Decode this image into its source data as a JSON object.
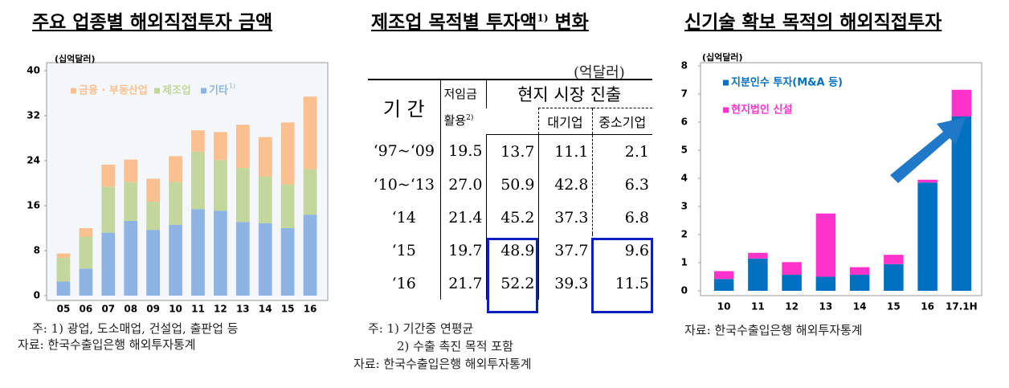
{
  "chart_data": [
    {
      "type": "stacked_bar",
      "title": "주요 업종별 해외직접투자 금액",
      "unit": "(십억달러)",
      "categories": [
        "05",
        "06",
        "07",
        "08",
        "09",
        "10",
        "11",
        "12",
        "13",
        "14",
        "15",
        "16"
      ],
      "series": [
        {
          "name": "기타",
          "name_sup": "1)",
          "color": "#8eb4e3",
          "values": [
            2.5,
            4.8,
            11.2,
            13.3,
            11.7,
            12.6,
            15.4,
            15.1,
            13.1,
            12.9,
            12.0,
            14.4
          ]
        },
        {
          "name": "제조업",
          "color": "#c3d69b",
          "values": [
            4.2,
            5.7,
            8.2,
            6.9,
            5.0,
            7.6,
            10.2,
            9.0,
            9.6,
            8.3,
            7.8,
            8.1
          ]
        },
        {
          "name": "금융 · 부동산업",
          "color": "#fac090",
          "values": [
            0.8,
            1.5,
            3.9,
            4.0,
            4.1,
            4.6,
            3.8,
            5.0,
            7.7,
            7.0,
            11.0,
            12.9
          ]
        }
      ],
      "ylim": [
        0,
        40
      ],
      "yticks": [
        0,
        8,
        16,
        24,
        32,
        40
      ],
      "notes": [
        "주: 1) 광업, 도소매업, 건설업, 출판업 등",
        "자료: 한국수출입은행 해외투자통계"
      ]
    },
    {
      "type": "stacked_bar",
      "title": "신기술 확보 목적의 해외직접투자",
      "unit": "(십억달러)",
      "categories": [
        "10",
        "11",
        "12",
        "13",
        "14",
        "15",
        "16",
        "17.1H"
      ],
      "series": [
        {
          "name": "지분인수 투자(M&A 등)",
          "color": "#0070c0",
          "values": [
            0.42,
            1.15,
            0.57,
            0.5,
            0.57,
            0.95,
            3.85,
            6.2
          ]
        },
        {
          "name": "현지법인 신설",
          "color": "#ff33cc",
          "values": [
            0.28,
            0.2,
            0.45,
            2.25,
            0.27,
            0.33,
            0.1,
            0.95
          ]
        }
      ],
      "ylim": [
        0,
        8
      ],
      "yticks": [
        0,
        1,
        2,
        3,
        4,
        5,
        6,
        7,
        8
      ],
      "notes": [
        "자료: 한국수출입은행 해외투자통계"
      ]
    }
  ],
  "table": {
    "title": "제조업 목적별 투자액",
    "title_sup": "1)",
    "title_end": "변화",
    "unit": "(억달러)",
    "header": {
      "period": "기 간",
      "low_wage": "저임금 활용",
      "low_wage_sup": "2)",
      "market": "현지 시장 진출",
      "large": "대기업",
      "sme": "중소기업"
    },
    "rows": [
      [
        "‘97~‘09",
        "19.5",
        "13.7",
        "11.1",
        "2.1"
      ],
      [
        "‘10~‘13",
        "27.0",
        "50.9",
        "42.8",
        "6.3"
      ],
      [
        "‘14",
        "21.4",
        "45.2",
        "37.3",
        "6.8"
      ],
      [
        "‘15",
        "19.7",
        "48.9",
        "37.7",
        "9.6"
      ],
      [
        "‘16",
        "21.7",
        "52.2",
        "39.3",
        "11.5"
      ]
    ],
    "notes": [
      "주: 1) 기간중 연평균",
      "2) 수출 촉진 목적 포함",
      "자료: 한국수출입은행 해외투자통계"
    ]
  }
}
